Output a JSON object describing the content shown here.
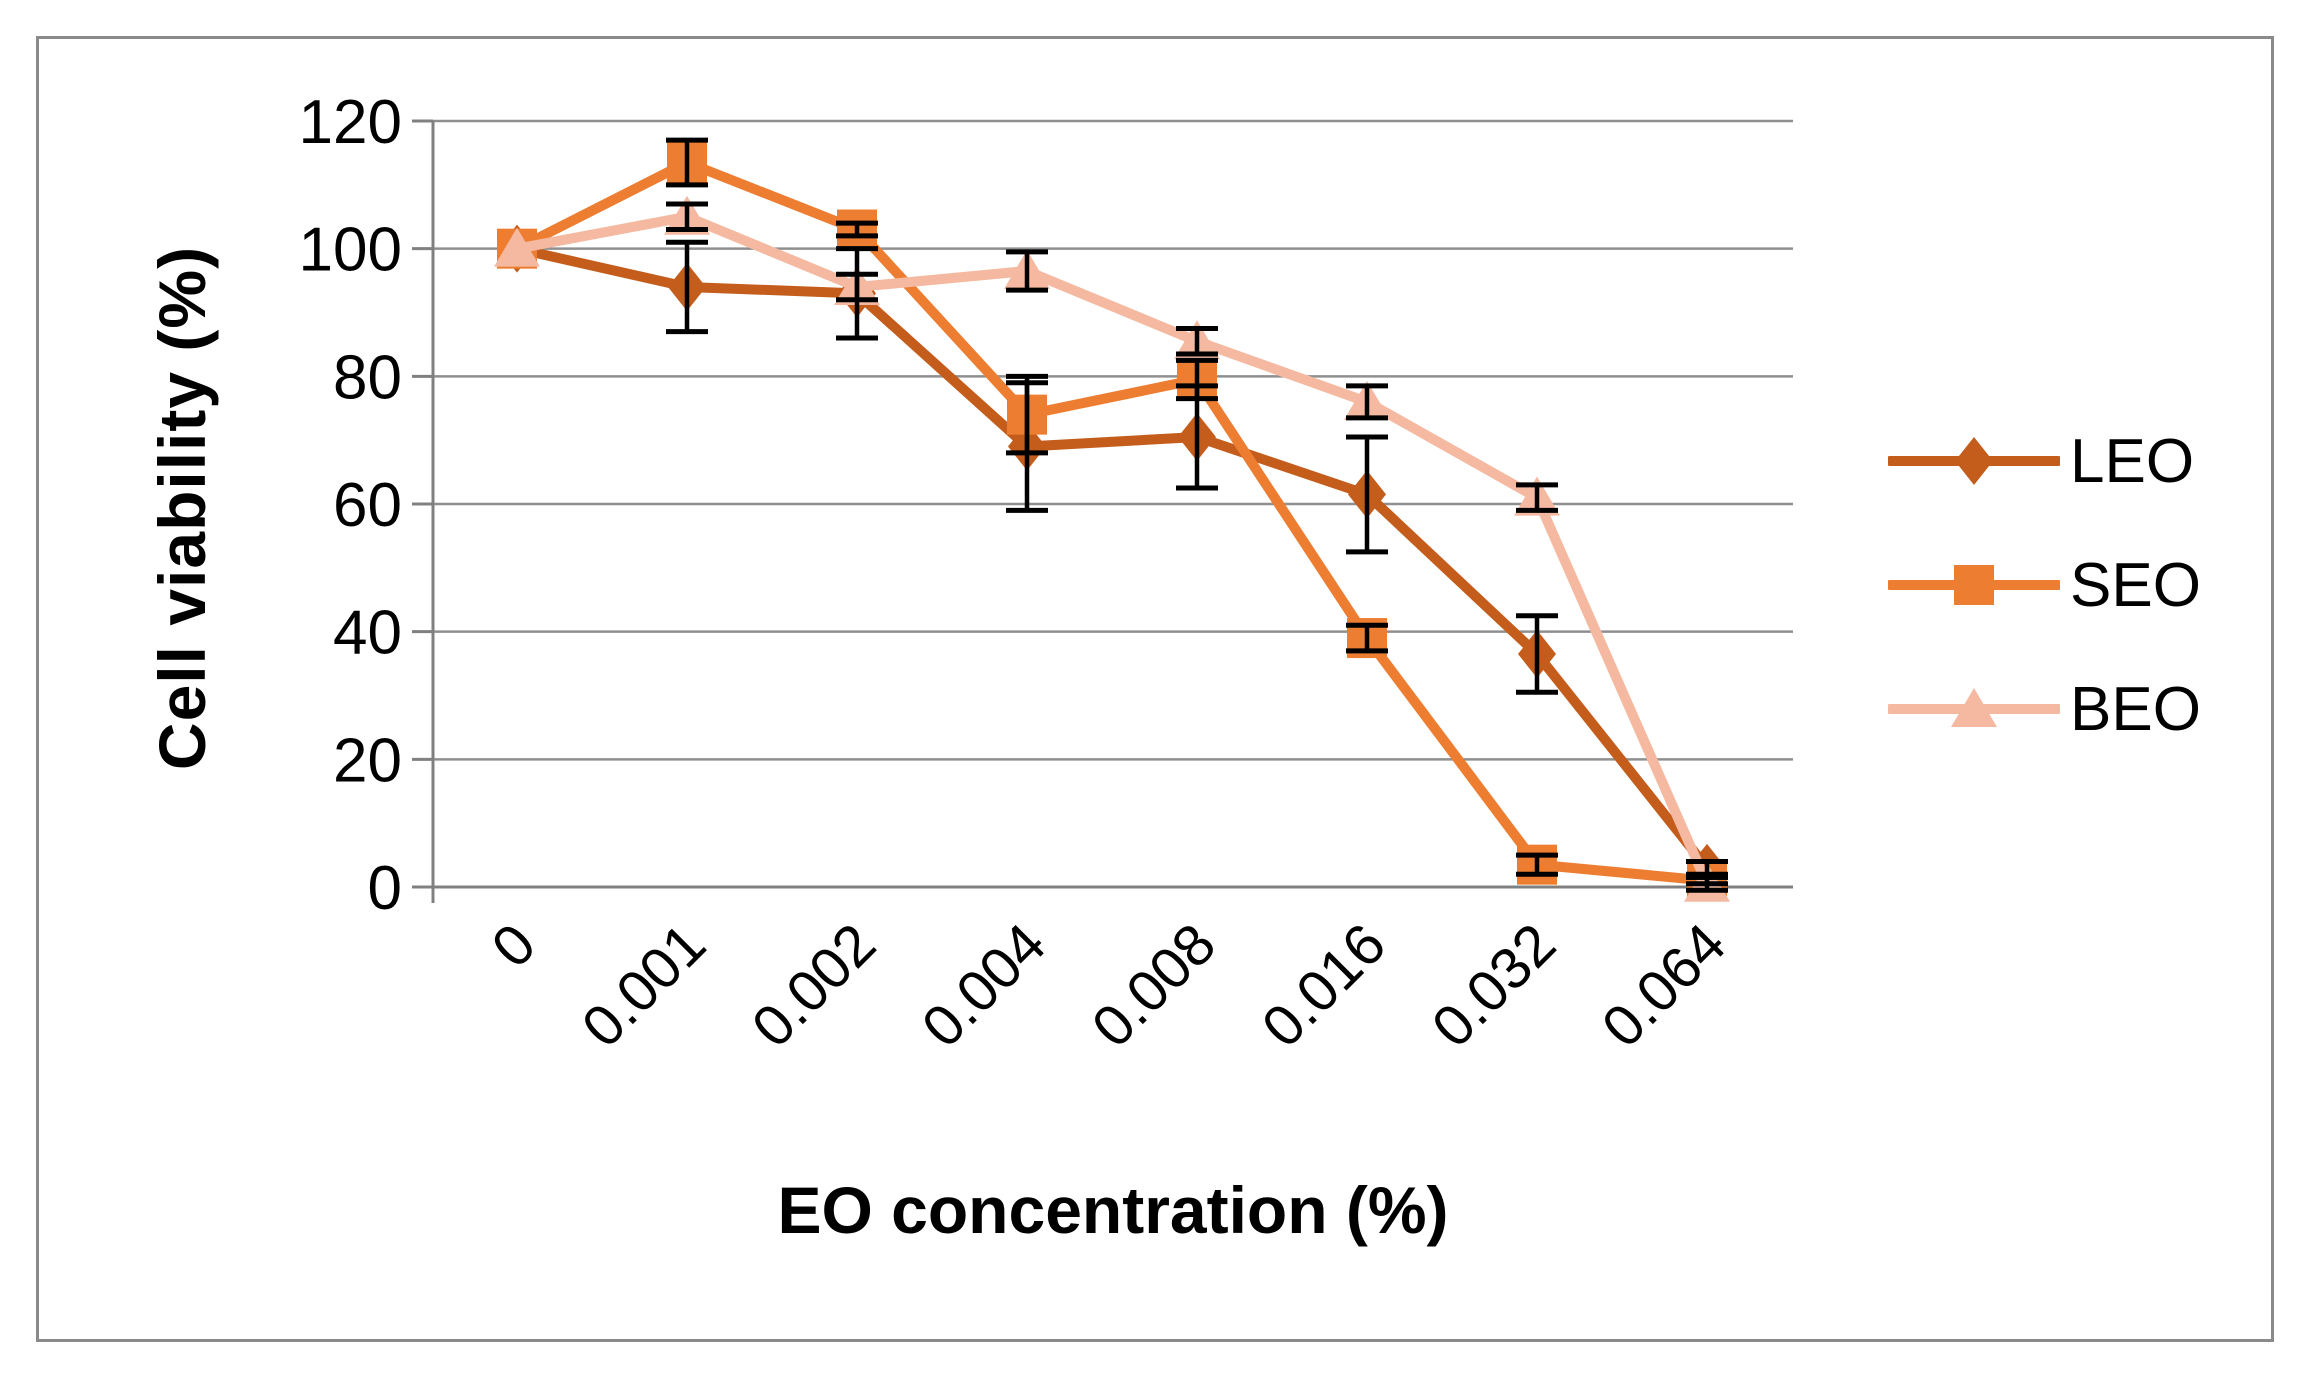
{
  "figure": {
    "background": "#FFFFFF",
    "border_color": "#8A8A8A"
  },
  "colors": {
    "axis": "#808080",
    "gridline": "#8F8F8F",
    "error_bar": "#000000",
    "text": "#000000"
  },
  "chart_data": {
    "type": "line",
    "title": "",
    "xlabel": "EO concentration (%)",
    "ylabel": "Cell viability (%)",
    "categories": [
      "0",
      "0.001",
      "0.002",
      "0.004",
      "0.008",
      "0.016",
      "0.032",
      "0.064"
    ],
    "yticks": [
      0,
      20,
      40,
      60,
      80,
      100,
      120
    ],
    "ylim": [
      0,
      120
    ],
    "grid": true,
    "legend_position": "right",
    "series": [
      {
        "name": "LEO",
        "marker": "diamond",
        "color": "#C45D1C",
        "values": [
          100,
          94,
          93,
          69,
          70.5,
          61.5,
          36.5,
          3
        ],
        "errors": [
          0,
          7,
          7,
          10,
          8,
          9,
          6,
          1
        ]
      },
      {
        "name": "SEO",
        "marker": "square",
        "color": "#ED7D31",
        "values": [
          100,
          113.5,
          103,
          74,
          79.5,
          39,
          3.5,
          1
        ],
        "errors": [
          0,
          3.5,
          1,
          6,
          3,
          2,
          1.5,
          0.5
        ]
      },
      {
        "name": "BEO",
        "marker": "triangle",
        "color": "#F4B9A0",
        "values": [
          100,
          105,
          94,
          96.5,
          85.5,
          76,
          61,
          0.5
        ],
        "errors": [
          0,
          2,
          2,
          3,
          2,
          2.5,
          2,
          1
        ]
      }
    ]
  }
}
